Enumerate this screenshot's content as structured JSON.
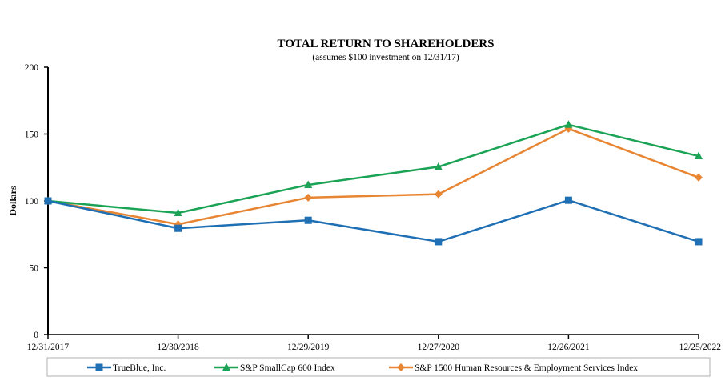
{
  "chart_data": {
    "type": "line",
    "title": "TOTAL RETURN TO SHAREHOLDERS",
    "subtitle": "(assumes $100 investment on 12/31/17)",
    "xlabel": "",
    "ylabel": "Dollars",
    "ylim": [
      0,
      200
    ],
    "yticks": [
      "0",
      "50",
      "100",
      "150",
      "200"
    ],
    "categories": [
      "12/31/2017",
      "12/30/2018",
      "12/29/2019",
      "12/27/2020",
      "12/26/2021",
      "12/25/2022"
    ],
    "series": [
      {
        "name": "TrueBlue, Inc.",
        "color": "#1f6fb5",
        "marker": "square",
        "values": [
          100,
          79.5,
          85.5,
          69.5,
          100.5,
          69.5
        ]
      },
      {
        "name": "S&P SmallCap 600 Index",
        "color": "#1aa355",
        "marker": "triangle",
        "values": [
          100,
          91,
          112,
          125.5,
          157,
          133.5
        ]
      },
      {
        "name": "S&P 1500 Human Resources & Employment Services Index",
        "color": "#e88532",
        "marker": "diamond",
        "values": [
          100,
          82.5,
          102.5,
          105,
          154,
          117.5
        ]
      }
    ],
    "legend_position": "bottom"
  }
}
